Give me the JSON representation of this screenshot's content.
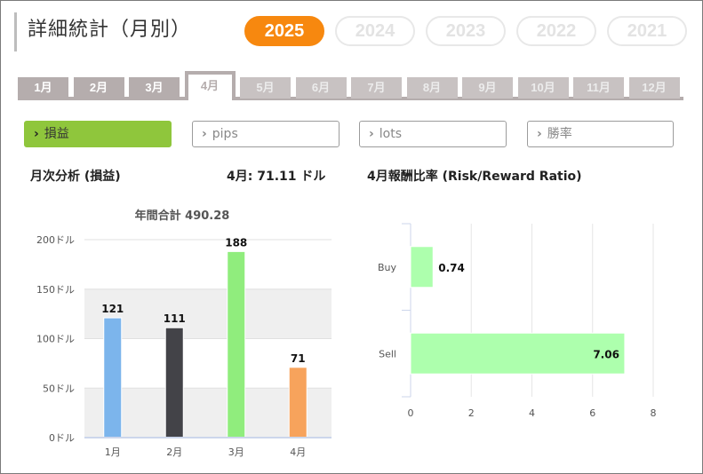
{
  "page": {
    "title": "詳細統計（月別）"
  },
  "years": [
    {
      "label": "2025",
      "active": true
    },
    {
      "label": "2024",
      "active": false
    },
    {
      "label": "2023",
      "active": false
    },
    {
      "label": "2022",
      "active": false
    },
    {
      "label": "2021",
      "active": false
    }
  ],
  "months": [
    "1月",
    "2月",
    "3月",
    "4月",
    "5月",
    "6月",
    "7月",
    "8月",
    "9月",
    "10月",
    "11月",
    "12月"
  ],
  "active_month_index": 3,
  "metrics": [
    {
      "label": "損益",
      "active": true
    },
    {
      "label": "pips",
      "active": false
    },
    {
      "label": "lots",
      "active": false
    },
    {
      "label": "勝率",
      "active": false
    }
  ],
  "sections": {
    "monthly_title": "月次分析 (損益)",
    "month_summary": "4月:  71.11 ドル",
    "ratio_title": "4月報酬比率 (Risk/Reward Ratio)"
  },
  "colors": {
    "accent_orange": "#f7880f",
    "accent_green": "#8fc63c",
    "tab_gray": "#b5adad"
  },
  "chart_data": [
    {
      "type": "bar",
      "title": "年間合計 490.28",
      "categories": [
        "1月",
        "2月",
        "3月",
        "4月"
      ],
      "values": [
        121,
        111,
        188,
        71
      ],
      "value_labels": [
        "121",
        "111",
        "188",
        "71"
      ],
      "colors": [
        "#7cb5ec",
        "#434348",
        "#90ed7d",
        "#f7a35c"
      ],
      "ylim": [
        0,
        200
      ],
      "y_ticks": [
        0,
        50,
        100,
        150,
        200
      ],
      "y_tick_labels": [
        "0ドル",
        "50ドル",
        "100ドル",
        "150ドル",
        "200ドル"
      ],
      "grid": true,
      "alternating_bands": true
    },
    {
      "type": "bar",
      "orientation": "horizontal",
      "categories": [
        "Buy",
        "Sell"
      ],
      "values": [
        0.74,
        7.06
      ],
      "value_labels": [
        "0.74",
        "7.06"
      ],
      "color": "#adffad",
      "xlim": [
        0,
        8
      ],
      "x_ticks": [
        0,
        2,
        4,
        6,
        8
      ],
      "grid": true
    }
  ]
}
